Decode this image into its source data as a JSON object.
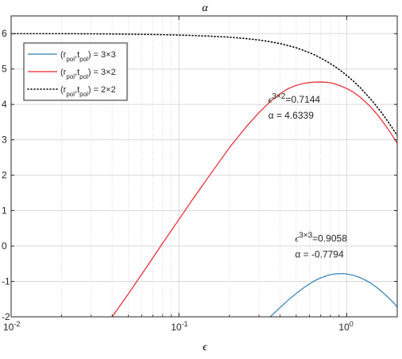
{
  "chart_data": {
    "type": "line",
    "title": "α",
    "xlabel": "ϵ",
    "ylabel": "",
    "xscale": "log",
    "xlim": [
      0.01,
      2
    ],
    "ylim": [
      -2,
      6.5
    ],
    "grid": true,
    "legend_position": "top-left",
    "x_ticks": [
      {
        "value": 0.01,
        "base": "10",
        "exp": "-2"
      },
      {
        "value": 0.1,
        "base": "10",
        "exp": "-1"
      },
      {
        "value": 1,
        "base": "10",
        "exp": "0"
      }
    ],
    "y_ticks": [
      {
        "value": -2,
        "label": "-2"
      },
      {
        "value": -1,
        "label": "-1"
      },
      {
        "value": 0,
        "label": "0"
      },
      {
        "value": 1,
        "label": "1"
      },
      {
        "value": 2,
        "label": "2"
      },
      {
        "value": 3,
        "label": "3"
      },
      {
        "value": 4,
        "label": "4"
      },
      {
        "value": 5,
        "label": "5"
      },
      {
        "value": 6,
        "label": "6"
      }
    ],
    "series": [
      {
        "legend_html": "(r<tspan baseline-shift='sub' font-size='9'>pol</tspan>,t<tspan baseline-shift='sub' font-size='9'>pol</tspan>) = 3×3",
        "legend_label": "(r_pol,t_pol) = 3×3",
        "color": "#2e7fb5",
        "style": "solid",
        "x": [
          0.35,
          0.4,
          0.45,
          0.5,
          0.55,
          0.6,
          0.65,
          0.7,
          0.75,
          0.8,
          0.85,
          0.9058,
          0.95,
          1.0,
          1.1,
          1.2,
          1.3,
          1.4,
          1.5,
          1.6,
          1.7,
          1.8,
          1.9,
          2.0
        ],
        "y": [
          -2.0,
          -1.74,
          -1.52,
          -1.34,
          -1.19,
          -1.07,
          -0.97,
          -0.9,
          -0.85,
          -0.81,
          -0.79,
          -0.7794,
          -0.78,
          -0.79,
          -0.83,
          -0.89,
          -0.97,
          -1.06,
          -1.16,
          -1.27,
          -1.38,
          -1.49,
          -1.6,
          -1.72
        ]
      },
      {
        "legend_label": "(r_pol,t_pol) = 3×2",
        "color": "#e8262b",
        "style": "solid",
        "x": [
          0.04,
          0.05,
          0.06,
          0.07,
          0.08,
          0.1,
          0.12,
          0.15,
          0.2,
          0.25,
          0.3,
          0.35,
          0.4,
          0.45,
          0.5,
          0.55,
          0.6,
          0.65,
          0.7144,
          0.78,
          0.85,
          0.9,
          1.0,
          1.1,
          1.2,
          1.3,
          1.4,
          1.5,
          1.6,
          1.7,
          1.8,
          1.9,
          2.0
        ],
        "y": [
          -2.0,
          -1.35,
          -0.8,
          -0.33,
          0.08,
          0.75,
          1.3,
          1.95,
          2.78,
          3.35,
          3.77,
          4.08,
          4.3,
          4.45,
          4.54,
          4.59,
          4.62,
          4.63,
          4.6339,
          4.62,
          4.58,
          4.54,
          4.45,
          4.34,
          4.21,
          4.06,
          3.91,
          3.75,
          3.58,
          3.41,
          3.24,
          3.07,
          2.9
        ]
      },
      {
        "legend_label": "(r_pol,t_pol) = 2×2",
        "color": "#000000",
        "style": "dotted",
        "x": [
          0.01,
          0.02,
          0.04,
          0.06,
          0.08,
          0.1,
          0.15,
          0.2,
          0.25,
          0.3,
          0.35,
          0.4,
          0.45,
          0.5,
          0.55,
          0.6,
          0.65,
          0.7,
          0.75,
          0.8,
          0.85,
          0.9,
          1.0,
          1.1,
          1.2,
          1.3,
          1.4,
          1.5,
          1.6,
          1.7,
          1.8,
          1.9,
          2.0
        ],
        "y": [
          6.0,
          6.0,
          5.99,
          5.98,
          5.97,
          5.96,
          5.93,
          5.9,
          5.86,
          5.82,
          5.77,
          5.72,
          5.66,
          5.6,
          5.53,
          5.46,
          5.39,
          5.31,
          5.23,
          5.15,
          5.07,
          4.99,
          4.82,
          4.65,
          4.48,
          4.3,
          4.13,
          3.96,
          3.79,
          3.62,
          3.45,
          3.28,
          3.12
        ]
      }
    ],
    "annotations": [
      {
        "sup": "3×2",
        "value": "=0.7144",
        "alpha_text": "α = 4.6339",
        "x": 0.7144,
        "y": 4.6339
      },
      {
        "sup": "3×3",
        "value": "=0.9058",
        "alpha_text": "α = -0.7794",
        "x": 0.9058,
        "y": -0.7794
      }
    ]
  }
}
